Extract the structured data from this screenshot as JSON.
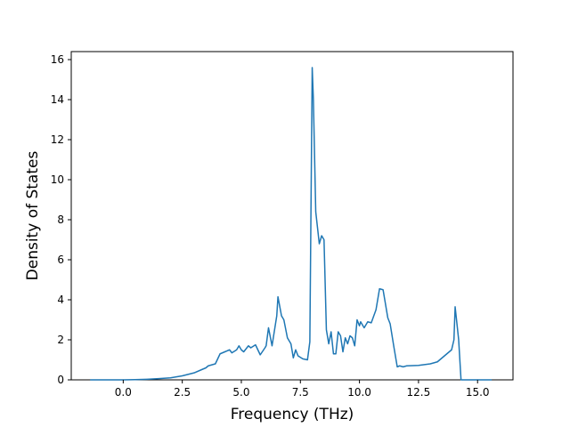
{
  "chart_data": {
    "type": "line",
    "title": "",
    "xlabel": "Frequency (THz)",
    "ylabel": "Density of States",
    "xlim": [
      -2.2,
      16.5
    ],
    "ylim": [
      0,
      16.4
    ],
    "xticks": [
      0.0,
      2.5,
      5.0,
      7.5,
      10.0,
      12.5,
      15.0
    ],
    "xtick_labels": [
      "0.0",
      "2.5",
      "5.0",
      "7.5",
      "10.0",
      "12.5",
      "15.0"
    ],
    "yticks": [
      0,
      2,
      4,
      6,
      8,
      10,
      12,
      14,
      16
    ],
    "ytick_labels": [
      "0",
      "2",
      "4",
      "6",
      "8",
      "10",
      "12",
      "14",
      "16"
    ],
    "grid": false,
    "legend": "none",
    "series": [
      {
        "color": "#1f77b4",
        "x": [
          -1.4,
          -0.5,
          0.0,
          0.5,
          1.0,
          1.5,
          2.0,
          2.5,
          3.0,
          3.3,
          3.5,
          3.6,
          3.9,
          4.1,
          4.3,
          4.5,
          4.6,
          4.8,
          4.9,
          5.0,
          5.1,
          5.3,
          5.4,
          5.6,
          5.8,
          6.0,
          6.05,
          6.15,
          6.3,
          6.5,
          6.55,
          6.7,
          6.8,
          6.95,
          7.1,
          7.2,
          7.3,
          7.4,
          7.6,
          7.8,
          7.9,
          8.0,
          8.05,
          8.15,
          8.3,
          8.4,
          8.5,
          8.6,
          8.7,
          8.8,
          8.9,
          9.0,
          9.1,
          9.2,
          9.3,
          9.4,
          9.5,
          9.6,
          9.7,
          9.8,
          9.9,
          10.0,
          10.05,
          10.2,
          10.35,
          10.5,
          10.7,
          10.85,
          11.0,
          11.2,
          11.3,
          11.45,
          11.6,
          11.7,
          11.85,
          12.0,
          12.5,
          13.0,
          13.3,
          13.6,
          13.9,
          14.0,
          14.05,
          14.2,
          14.3,
          15.0,
          15.6
        ],
        "y": [
          0.0,
          0.0,
          0.0,
          0.01,
          0.03,
          0.06,
          0.1,
          0.2,
          0.35,
          0.5,
          0.6,
          0.7,
          0.8,
          1.3,
          1.4,
          1.5,
          1.35,
          1.5,
          1.7,
          1.5,
          1.4,
          1.7,
          1.6,
          1.75,
          1.25,
          1.6,
          1.7,
          2.6,
          1.7,
          3.2,
          4.15,
          3.2,
          3.0,
          2.1,
          1.8,
          1.1,
          1.5,
          1.2,
          1.05,
          1.0,
          1.9,
          15.6,
          14.0,
          8.4,
          6.8,
          7.2,
          7.0,
          2.5,
          1.8,
          2.4,
          1.3,
          1.3,
          2.4,
          2.2,
          1.4,
          2.1,
          1.8,
          2.2,
          2.1,
          1.7,
          3.0,
          2.7,
          2.9,
          2.6,
          2.9,
          2.85,
          3.5,
          4.55,
          4.5,
          3.1,
          2.8,
          1.7,
          0.65,
          0.7,
          0.65,
          0.7,
          0.72,
          0.8,
          0.9,
          1.2,
          1.5,
          2.0,
          3.65,
          2.0,
          0.0,
          0.0,
          0.0
        ]
      }
    ]
  }
}
